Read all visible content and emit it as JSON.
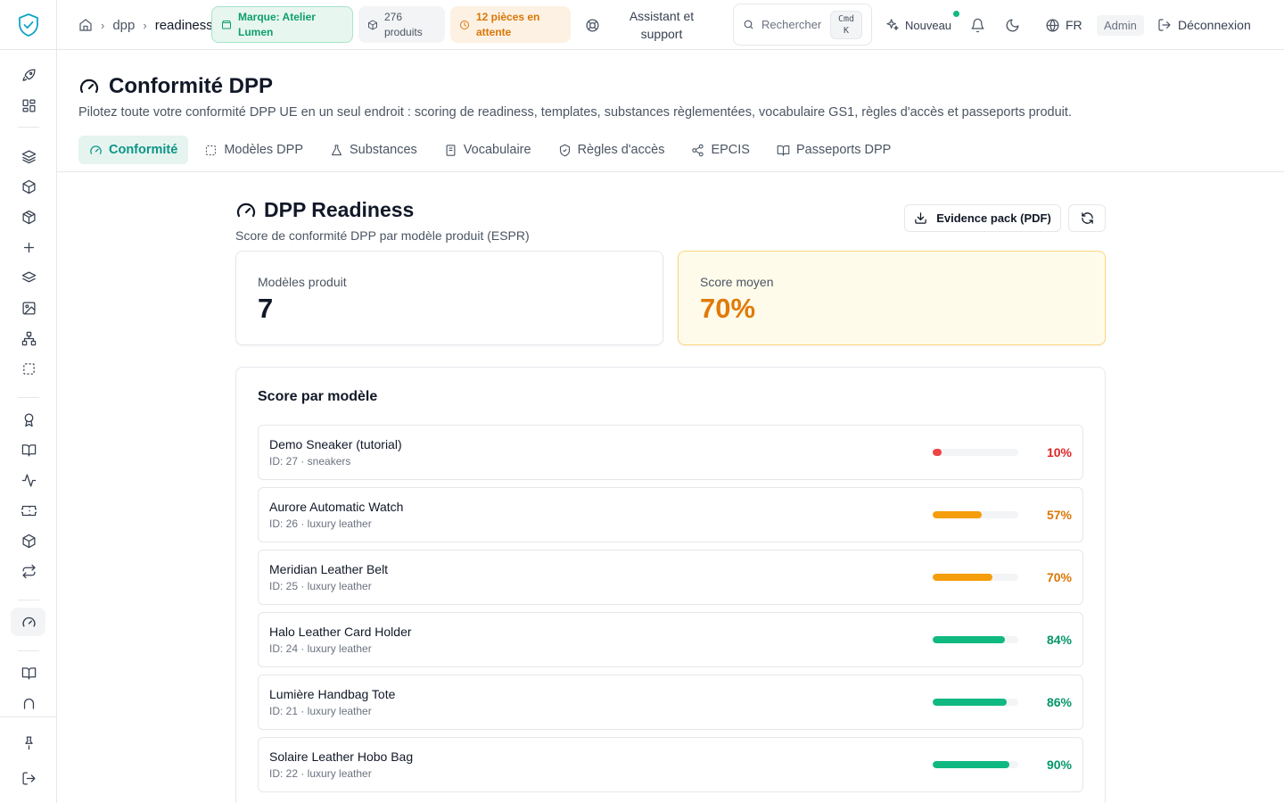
{
  "topbar": {
    "breadcrumbs": [
      "dpp",
      "readiness"
    ],
    "brand_pill": "Marque: Atelier Lumen",
    "products_pill": "276 produits",
    "pending_pill": "12 pièces en attente",
    "support": "Assistant et support",
    "search_placeholder": "Rechercher",
    "shortcut_key1": "Cmd",
    "shortcut_key2": "K",
    "new_label": "Nouveau",
    "language": "FR",
    "role": "Admin",
    "logout": "Déconnexion"
  },
  "page": {
    "title": "Conformité DPP",
    "subtitle": "Pilotez toute votre conformité DPP UE en un seul endroit : scoring de readiness, templates, substances règlementées, vocabulaire GS1, règles d'accès et passeports produit.",
    "tabs": [
      {
        "label": "Conformité",
        "icon": "gauge-icon",
        "active": true
      },
      {
        "label": "Modèles DPP",
        "icon": "dashed-square-icon",
        "active": false
      },
      {
        "label": "Substances",
        "icon": "flask-icon",
        "active": false
      },
      {
        "label": "Vocabulaire",
        "icon": "book-icon",
        "active": false
      },
      {
        "label": "Règles d'accès",
        "icon": "shield-icon",
        "active": false
      },
      {
        "label": "EPCIS",
        "icon": "share-icon",
        "active": false
      },
      {
        "label": "Passeports DPP",
        "icon": "open-book-icon",
        "active": false
      }
    ]
  },
  "readiness": {
    "title": "DPP Readiness",
    "subtitle": "Score de conformité DPP par modèle produit (ESPR)",
    "evidence_button": "Evidence pack (PDF)",
    "stats": {
      "models_label": "Modèles produit",
      "models_value": "7",
      "avg_label": "Score moyen",
      "avg_value": "70%"
    },
    "panel_title": "Score par modèle",
    "models": [
      {
        "name": "Demo Sneaker (tutorial)",
        "meta": "ID: 27 · sneakers",
        "score": 10,
        "score_label": "10%",
        "color": "#ef4444"
      },
      {
        "name": "Aurore Automatic Watch",
        "meta": "ID: 26 · luxury leather",
        "score": 57,
        "score_label": "57%",
        "color": "#f59e0b"
      },
      {
        "name": "Meridian Leather Belt",
        "meta": "ID: 25 · luxury leather",
        "score": 70,
        "score_label": "70%",
        "color": "#f59e0b"
      },
      {
        "name": "Halo Leather Card Holder",
        "meta": "ID: 24 · luxury leather",
        "score": 84,
        "score_label": "84%",
        "color": "#10b981"
      },
      {
        "name": "Lumière Handbag Tote",
        "meta": "ID: 21 · luxury leather",
        "score": 86,
        "score_label": "86%",
        "color": "#10b981"
      },
      {
        "name": "Solaire Leather Hobo Bag",
        "meta": "ID: 22 · luxury leather",
        "score": 90,
        "score_label": "90%",
        "color": "#10b981"
      }
    ]
  },
  "colors": {
    "accent": "#0d9488",
    "score_low": "#dc2626",
    "score_mid": "#d97706",
    "score_high": "#059669"
  }
}
